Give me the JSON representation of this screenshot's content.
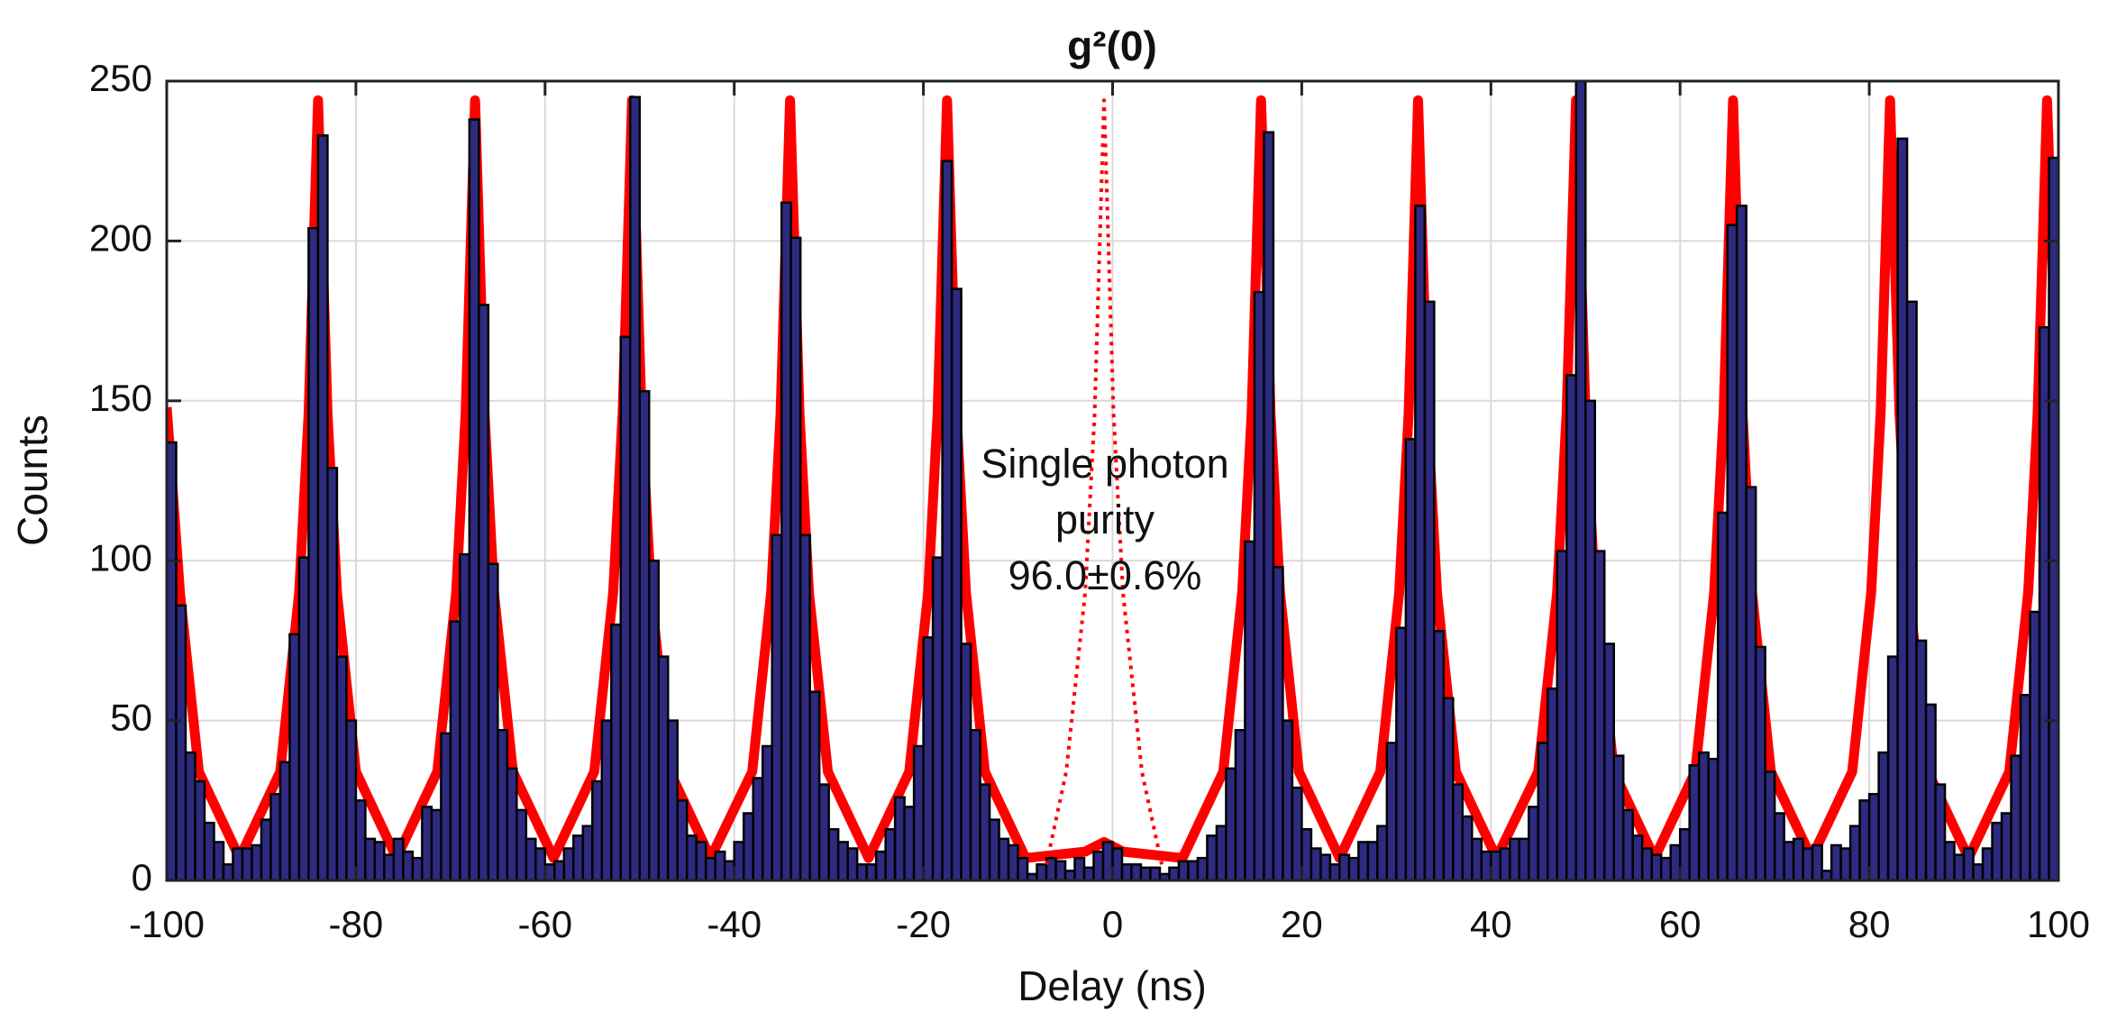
{
  "chart_data": {
    "type": "histogram",
    "title": "g²(0)",
    "xlabel": "Delay (ns)",
    "ylabel": "Counts",
    "annotation": [
      "Single photon",
      "purity",
      "96.0±0.6%"
    ],
    "bins": [
      -100,
      -99,
      -98,
      -97,
      -96,
      -95,
      -94,
      -93,
      -92,
      -91,
      -90,
      -89,
      -88,
      -87,
      -86,
      -85,
      -84,
      -83,
      -82,
      -81,
      -80,
      -79,
      -78,
      -77,
      -76,
      -75,
      -74,
      -73,
      -72,
      -71,
      -70,
      -69,
      -68,
      -67,
      -66,
      -65,
      -64,
      -63,
      -62,
      -61,
      -60,
      -59,
      -58,
      -57,
      -56,
      -55,
      -54,
      -53,
      -52,
      -51,
      -50,
      -49,
      -48,
      -47,
      -46,
      -45,
      -44,
      -43,
      -42,
      -41,
      -40,
      -39,
      -38,
      -37,
      -36,
      -35,
      -34,
      -33,
      -32,
      -31,
      -30,
      -29,
      -28,
      -27,
      -26,
      -25,
      -24,
      -23,
      -22,
      -21,
      -20,
      -19,
      -18,
      -17,
      -16,
      -15,
      -14,
      -13,
      -12,
      -11,
      -10,
      -9,
      -8,
      -7,
      -6,
      -5,
      -4,
      -3,
      -2,
      -1,
      0,
      1,
      2,
      3,
      4,
      5,
      6,
      7,
      8,
      9,
      10,
      11,
      12,
      13,
      14,
      15,
      16,
      17,
      18,
      19,
      20,
      21,
      22,
      23,
      24,
      25,
      26,
      27,
      28,
      29,
      30,
      31,
      32,
      33,
      34,
      35,
      36,
      37,
      38,
      39,
      40,
      41,
      42,
      43,
      44,
      45,
      46,
      47,
      48,
      49,
      50,
      51,
      52,
      53,
      54,
      55,
      56,
      57,
      58,
      59,
      60,
      61,
      62,
      63,
      64,
      65,
      66,
      67,
      68,
      69,
      70,
      71,
      72,
      73,
      74,
      75,
      76,
      77,
      78,
      79,
      80,
      81,
      82,
      83,
      84,
      85,
      86,
      87,
      88,
      89,
      90,
      91,
      92,
      93,
      94,
      95,
      96,
      97,
      98,
      99,
      100
    ],
    "values": [
      137,
      86,
      40,
      31,
      18,
      12,
      5,
      10,
      10,
      11,
      19,
      27,
      37,
      77,
      101,
      204,
      233,
      129,
      70,
      50,
      25,
      13,
      12,
      8,
      13,
      9,
      7,
      23,
      22,
      46,
      81,
      102,
      238,
      180,
      99,
      47,
      35,
      22,
      13,
      10,
      5,
      6,
      10,
      14,
      17,
      31,
      50,
      80,
      170,
      245,
      153,
      100,
      70,
      50,
      25,
      14,
      12,
      7,
      9,
      6,
      12,
      21,
      32,
      42,
      108,
      212,
      201,
      108,
      59,
      30,
      16,
      12,
      10,
      5,
      5,
      9,
      16,
      26,
      23,
      42,
      76,
      101,
      225,
      185,
      74,
      47,
      30,
      19,
      13,
      11,
      7,
      2,
      5,
      7,
      6,
      3,
      7,
      4,
      9,
      12,
      10,
      5,
      5,
      4,
      4,
      2,
      4,
      6,
      6,
      7,
      14,
      17,
      35,
      47,
      106,
      184,
      234,
      98,
      50,
      29,
      16,
      10,
      8,
      5,
      8,
      7,
      12,
      12,
      17,
      43,
      79,
      138,
      211,
      181,
      78,
      57,
      30,
      20,
      13,
      9,
      9,
      10,
      13,
      13,
      23,
      43,
      60,
      103,
      158,
      250,
      150,
      103,
      74,
      39,
      22,
      14,
      10,
      8,
      7,
      11,
      16,
      36,
      40,
      38,
      115,
      205,
      211,
      123,
      73,
      34,
      21,
      12,
      13,
      10,
      11,
      3,
      11,
      10,
      17,
      25,
      27,
      40,
      70,
      232,
      181,
      75,
      55,
      30,
      12,
      8,
      10,
      5,
      10,
      18,
      21,
      39,
      58,
      84,
      173,
      226
    ],
    "color": "#2e2a80",
    "lines": [
      {
        "color": "#ff0000",
        "dash": false,
        "x": [
          -100,
          -98.6,
          -96.6,
          -92.3,
          -88,
          -86,
          -85,
          -84,
          -83,
          -82,
          -80,
          -75.7,
          -71.4,
          -69.4,
          -68.4,
          -67.4,
          -66.4,
          -65.4,
          -63.4,
          -59.1,
          -54.8,
          -52.8,
          -51.8,
          -50.8,
          -49.8,
          -48.8,
          -46.8,
          -42.5,
          -38.1,
          -36.1,
          -35.1,
          -34.1,
          -33.1,
          -32.1,
          -30.1,
          -25.8,
          -21.5,
          -19.5,
          -18.5,
          -17.5,
          -16.5,
          -15.5,
          -13.5,
          -9.2,
          -2.9,
          -0.9,
          1.1,
          7.4,
          11.7,
          13.7,
          14.7,
          15.7,
          16.7,
          17.7,
          19.7,
          24,
          28.3,
          30.3,
          31.3,
          32.3,
          33.3,
          34.3,
          36.3,
          40.6,
          45,
          47,
          48,
          49,
          50,
          51,
          53,
          57.3,
          61.6,
          63.6,
          64.6,
          65.6,
          66.6,
          67.6,
          69.6,
          73.9,
          78.2,
          80.2,
          81.2,
          82.2,
          83.2,
          84.2,
          86.2,
          90.5,
          94.8,
          96.8,
          97.8,
          98.8,
          100
        ],
        "values": [
          148,
          90,
          34,
          7,
          34,
          90,
          146,
          244,
          146,
          90,
          34,
          7,
          34,
          90,
          146,
          244,
          146,
          90,
          34,
          7,
          34,
          90,
          146,
          244,
          146,
          90,
          34,
          7,
          34,
          90,
          146,
          244,
          146,
          90,
          34,
          7,
          34,
          90,
          146,
          244,
          146,
          90,
          34,
          7,
          9,
          12,
          9,
          7,
          34,
          90,
          146,
          244,
          146,
          90,
          34,
          7,
          34,
          90,
          146,
          244,
          146,
          90,
          34,
          7,
          34,
          90,
          146,
          244,
          146,
          90,
          34,
          7,
          34,
          90,
          146,
          244,
          146,
          90,
          34,
          7,
          34,
          90,
          146,
          244,
          146,
          90,
          34,
          7,
          34,
          90,
          146,
          244,
          135
        ]
      },
      {
        "color": "#ff0000",
        "dash": true,
        "x": [
          -7,
          -4.9,
          -2.9,
          -1.9,
          -0.9,
          0.1,
          1.1,
          3.1,
          5.2
        ],
        "values": [
          5,
          34,
          90,
          146,
          244,
          146,
          90,
          34,
          5
        ]
      }
    ],
    "xlim": [
      -100,
      100
    ],
    "ylim": [
      0,
      250
    ],
    "xticks": [
      -100,
      -80,
      -60,
      -40,
      -20,
      0,
      20,
      40,
      60,
      80,
      100
    ],
    "yticks": [
      0,
      50,
      100,
      150,
      200,
      250
    ],
    "grid": true
  }
}
